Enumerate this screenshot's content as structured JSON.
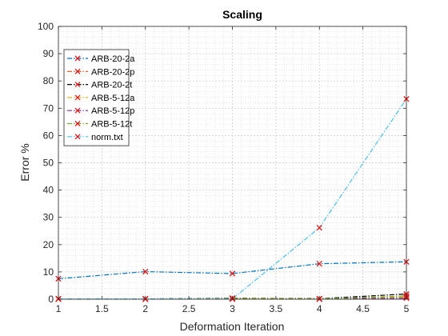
{
  "chart_data": {
    "type": "line",
    "title": "Scaling",
    "xlabel": "Deformation Iteration",
    "ylabel": "Error %",
    "xlim": [
      1,
      5
    ],
    "ylim": [
      0,
      100
    ],
    "xticks": [
      "1",
      "1.5",
      "2",
      "2.5",
      "3",
      "3.5",
      "4",
      "4.5",
      "5"
    ],
    "yticks": [
      "0",
      "10",
      "20",
      "30",
      "40",
      "50",
      "60",
      "70",
      "80",
      "90",
      "100"
    ],
    "grid": "minor",
    "legend_position": "top-left",
    "x": [
      1,
      2,
      3,
      4,
      5
    ],
    "series": [
      {
        "name": "ARB-20-2a",
        "color": "#0072BD",
        "values": [
          7.5,
          10.1,
          9.4,
          13.0,
          13.7
        ]
      },
      {
        "name": "ARB-20-2p",
        "color": "#D95319",
        "values": [
          0.1,
          0.1,
          0.2,
          0.1,
          0.6
        ]
      },
      {
        "name": "ARB-20-2t",
        "color": "#000000",
        "values": [
          0.1,
          0.1,
          0.4,
          0.2,
          1.9
        ]
      },
      {
        "name": "ARB-5-12a",
        "color": "#EDB120",
        "values": [
          0.1,
          0.1,
          0.3,
          0.1,
          0.8
        ]
      },
      {
        "name": "ARB-5-12p",
        "color": "#7E2F8E",
        "values": [
          0.1,
          0.1,
          0.1,
          0.1,
          0.4
        ]
      },
      {
        "name": "ARB-5-12t",
        "color": "#77AC30",
        "values": [
          0.1,
          0.1,
          0.2,
          0.1,
          1.2
        ]
      },
      {
        "name": "norm.txt",
        "color": "#4DBEEE",
        "values": [
          0.1,
          0.1,
          0.1,
          26.2,
          73.4
        ]
      }
    ],
    "marker_color": "#E01A1A"
  }
}
